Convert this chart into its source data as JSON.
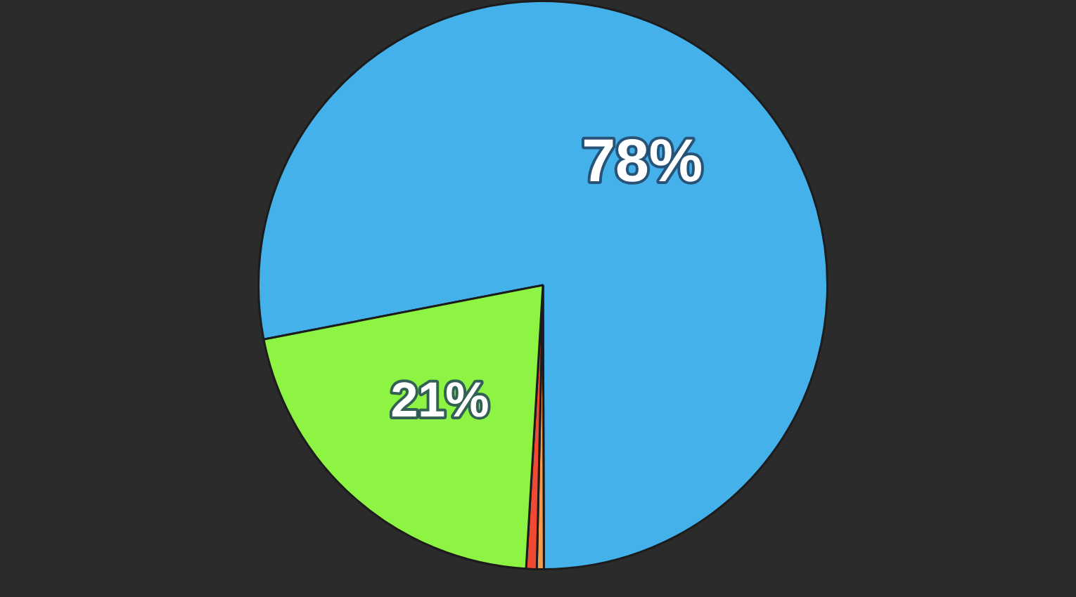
{
  "chart_data": {
    "type": "pie",
    "categories": [
      null,
      null,
      null,
      null
    ],
    "values": [
      78,
      0.4,
      0.6,
      21
    ],
    "colors": [
      "#45b1ea",
      "#f7994a",
      "#f04a35",
      "#8ef443"
    ],
    "value_labels": [
      "78%",
      null,
      null,
      "21%"
    ]
  }
}
